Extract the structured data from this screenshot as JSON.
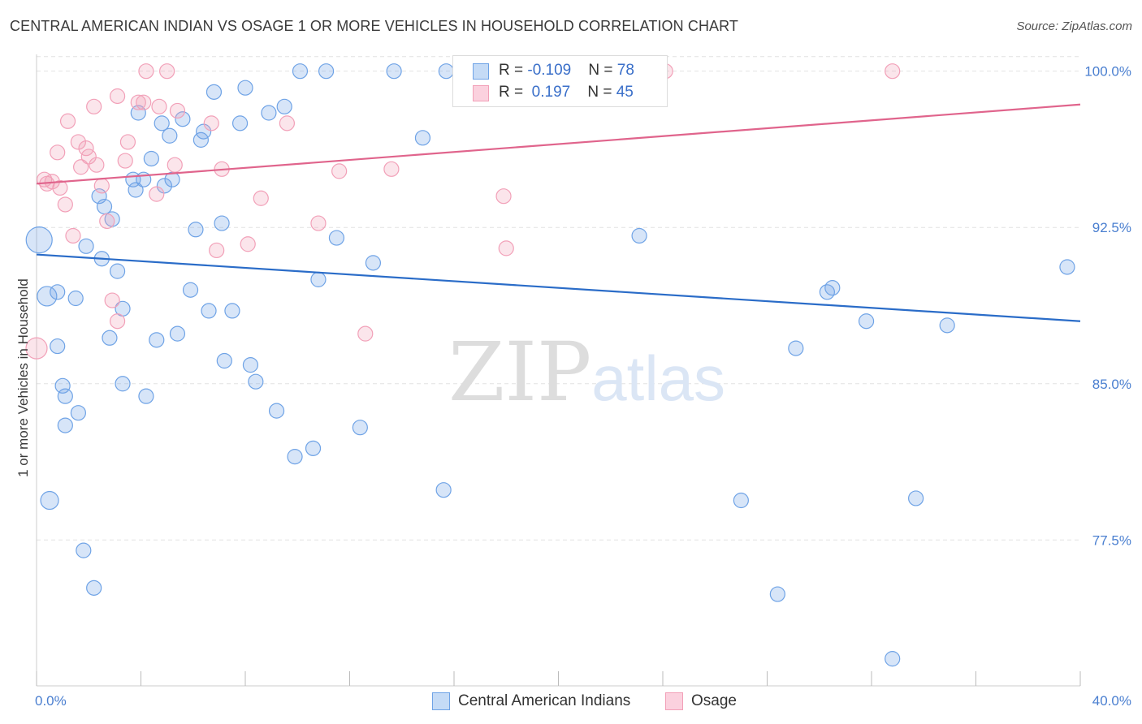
{
  "title": "CENTRAL AMERICAN INDIAN VS OSAGE 1 OR MORE VEHICLES IN HOUSEHOLD CORRELATION CHART",
  "source": "Source: ZipAtlas.com",
  "watermark": {
    "zip": "ZIP",
    "atlas": "atlas"
  },
  "legend": {
    "rows": [
      {
        "r_label": "R = ",
        "r_value": "-0.109",
        "n_label": "N = ",
        "n_value": "78",
        "color": "#6fa3e6"
      },
      {
        "r_label": "R = ",
        "r_value": " 0.197",
        "n_label": "N = ",
        "n_value": "45",
        "color": "#f2a0b8"
      }
    ]
  },
  "bottom_legend": [
    {
      "label": "Central American Indians",
      "color": "#6fa3e6"
    },
    {
      "label": "Osage",
      "color": "#f2a0b8"
    }
  ],
  "chart_data": {
    "type": "scatter",
    "xlabel": "",
    "ylabel": "1 or more Vehicles in Household",
    "xlim": [
      0,
      40
    ],
    "ylim": [
      70.5,
      101.0
    ],
    "x_tick_labels": [
      "0.0%",
      "40.0%"
    ],
    "y_ticks": [
      77.5,
      85.0,
      92.5,
      100.0
    ],
    "y_tick_labels": [
      "77.5%",
      "85.0%",
      "92.5%",
      "100.0%"
    ],
    "grid": true,
    "series": [
      {
        "name": "Central American Indians",
        "color": "#6fa3e6",
        "line_color": "#2a6cc8",
        "trend": {
          "x": [
            0,
            40
          ],
          "y": [
            91.2,
            88.0
          ]
        },
        "points": [
          [
            0.1,
            91.9
          ],
          [
            0.4,
            89.2
          ],
          [
            0.8,
            86.8
          ],
          [
            0.5,
            79.4
          ],
          [
            0.8,
            89.4
          ],
          [
            1.0,
            84.9
          ],
          [
            1.1,
            84.4
          ],
          [
            1.1,
            83.0
          ],
          [
            1.5,
            89.1
          ],
          [
            1.6,
            83.6
          ],
          [
            1.8,
            77.0
          ],
          [
            1.9,
            91.6
          ],
          [
            2.2,
            75.2
          ],
          [
            2.4,
            94.0
          ],
          [
            2.5,
            91.0
          ],
          [
            2.6,
            93.5
          ],
          [
            2.8,
            87.2
          ],
          [
            2.9,
            92.9
          ],
          [
            3.1,
            90.4
          ],
          [
            3.3,
            88.6
          ],
          [
            3.3,
            85.0
          ],
          [
            3.7,
            94.8
          ],
          [
            3.8,
            94.3
          ],
          [
            3.9,
            98.0
          ],
          [
            4.1,
            94.8
          ],
          [
            4.2,
            84.4
          ],
          [
            4.4,
            95.8
          ],
          [
            4.6,
            87.1
          ],
          [
            4.8,
            97.5
          ],
          [
            4.9,
            94.5
          ],
          [
            5.1,
            96.9
          ],
          [
            5.2,
            94.8
          ],
          [
            5.4,
            87.4
          ],
          [
            5.6,
            97.7
          ],
          [
            5.9,
            89.5
          ],
          [
            6.1,
            92.4
          ],
          [
            6.3,
            96.7
          ],
          [
            6.4,
            97.1
          ],
          [
            6.6,
            88.5
          ],
          [
            6.8,
            99.0
          ],
          [
            7.1,
            92.7
          ],
          [
            7.2,
            86.1
          ],
          [
            7.5,
            88.5
          ],
          [
            7.8,
            97.5
          ],
          [
            8.0,
            99.2
          ],
          [
            8.2,
            85.9
          ],
          [
            8.4,
            85.1
          ],
          [
            8.9,
            98.0
          ],
          [
            9.2,
            83.7
          ],
          [
            9.5,
            98.3
          ],
          [
            9.9,
            81.5
          ],
          [
            10.1,
            100.0
          ],
          [
            10.6,
            81.9
          ],
          [
            10.8,
            90.0
          ],
          [
            11.1,
            100.0
          ],
          [
            11.5,
            92.0
          ],
          [
            12.4,
            82.9
          ],
          [
            12.9,
            90.8
          ],
          [
            13.7,
            100.0
          ],
          [
            14.8,
            96.8
          ],
          [
            15.6,
            79.9
          ],
          [
            15.7,
            100.0
          ],
          [
            17.5,
            100.0
          ],
          [
            19.0,
            100.0
          ],
          [
            20.4,
            100.0
          ],
          [
            22.5,
            100.0
          ],
          [
            23.0,
            100.0
          ],
          [
            23.1,
            92.1
          ],
          [
            27.0,
            79.4
          ],
          [
            28.4,
            74.9
          ],
          [
            29.1,
            86.7
          ],
          [
            30.3,
            89.4
          ],
          [
            30.5,
            89.6
          ],
          [
            31.8,
            88.0
          ],
          [
            32.8,
            71.8
          ],
          [
            33.7,
            79.5
          ],
          [
            34.9,
            87.8
          ],
          [
            39.5,
            90.6
          ]
        ]
      },
      {
        "name": "Osage",
        "color": "#f2a0b8",
        "line_color": "#e0648c",
        "trend": {
          "x": [
            0,
            40
          ],
          "y": [
            94.6,
            98.4
          ]
        },
        "points": [
          [
            0.0,
            86.7
          ],
          [
            0.3,
            94.8
          ],
          [
            0.4,
            94.6
          ],
          [
            0.6,
            94.7
          ],
          [
            0.8,
            96.1
          ],
          [
            0.9,
            94.4
          ],
          [
            1.1,
            93.6
          ],
          [
            1.2,
            97.6
          ],
          [
            1.4,
            92.1
          ],
          [
            1.6,
            96.6
          ],
          [
            1.7,
            95.4
          ],
          [
            1.9,
            96.3
          ],
          [
            2.0,
            95.9
          ],
          [
            2.2,
            98.3
          ],
          [
            2.3,
            95.5
          ],
          [
            2.5,
            94.5
          ],
          [
            2.7,
            92.8
          ],
          [
            2.9,
            89.0
          ],
          [
            3.1,
            98.8
          ],
          [
            3.1,
            88.0
          ],
          [
            3.4,
            95.7
          ],
          [
            3.5,
            96.6
          ],
          [
            3.9,
            98.5
          ],
          [
            4.1,
            98.5
          ],
          [
            4.2,
            100.0
          ],
          [
            4.6,
            94.1
          ],
          [
            4.7,
            98.3
          ],
          [
            5.0,
            100.0
          ],
          [
            5.3,
            95.5
          ],
          [
            5.4,
            98.1
          ],
          [
            6.7,
            97.5
          ],
          [
            6.9,
            91.4
          ],
          [
            7.1,
            95.3
          ],
          [
            8.1,
            91.7
          ],
          [
            8.6,
            93.9
          ],
          [
            9.6,
            97.5
          ],
          [
            10.8,
            92.7
          ],
          [
            11.6,
            95.2
          ],
          [
            12.6,
            87.4
          ],
          [
            13.6,
            95.3
          ],
          [
            17.9,
            94.0
          ],
          [
            18.0,
            91.5
          ],
          [
            22.6,
            100.0
          ],
          [
            24.1,
            100.0
          ],
          [
            32.8,
            100.0
          ]
        ]
      }
    ]
  }
}
